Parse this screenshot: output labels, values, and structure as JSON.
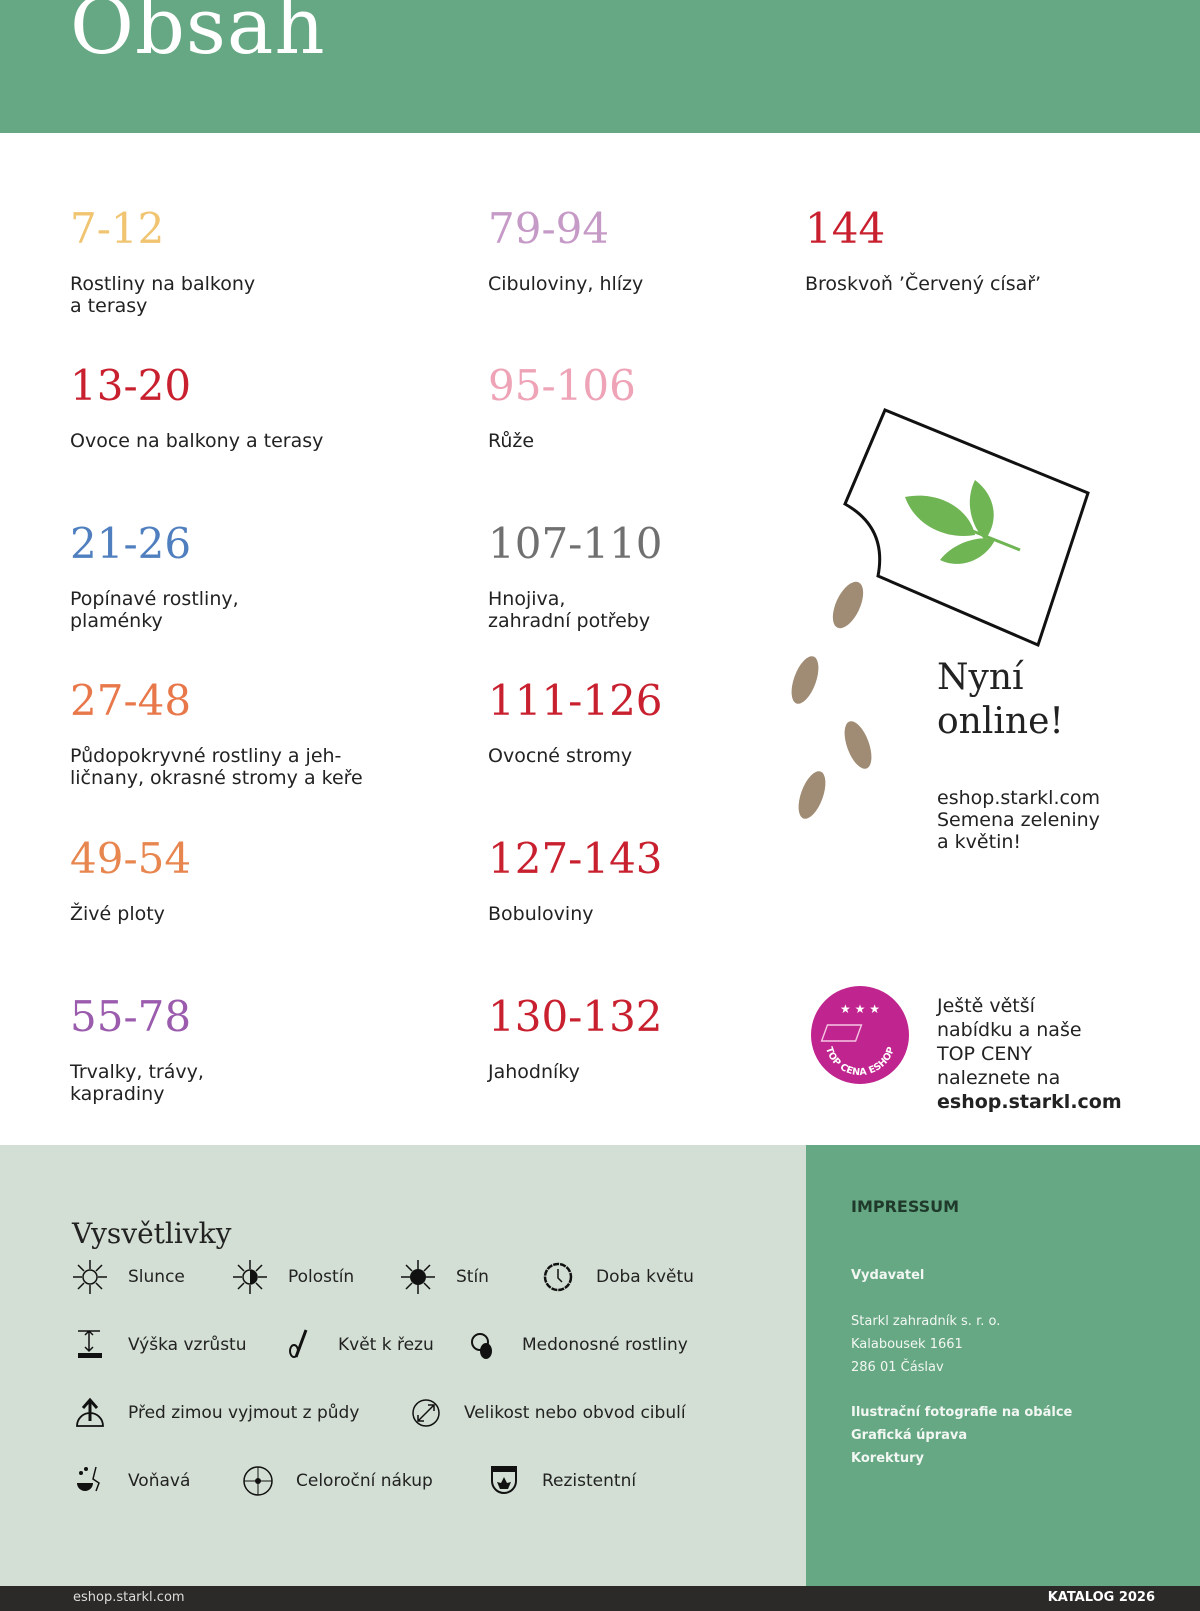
{
  "header": {
    "title": "Obsah",
    "bg": "#65a883"
  },
  "toc": [
    {
      "pages": "7-12",
      "label": "Rostliny na balkony\na terasy",
      "color": "#f0c471"
    },
    {
      "pages": "13-20",
      "label": "Ovoce na balkony a terasy",
      "color": "#c8202f"
    },
    {
      "pages": "21-26",
      "label": "Popínavé rostliny,\nplaménky",
      "color": "#4f7fbf"
    },
    {
      "pages": "27-48",
      "label": "Půdopokryvné rostliny a jeh-\nličnany, okrasné stromy a keře",
      "color": "#e8774a"
    },
    {
      "pages": "49-54",
      "label": "Živé ploty",
      "color": "#e8864f"
    },
    {
      "pages": "55-78",
      "label": "Trvalky, trávy,\nkapradiny",
      "color": "#9b5cae"
    },
    {
      "pages": "79-94",
      "label": "Cibuloviny, hlízy",
      "color": "#c69ac7"
    },
    {
      "pages": "95-106",
      "label": "Růže",
      "color": "#eea3b7"
    },
    {
      "pages": "107-110",
      "label": "Hnojiva,\nzahradní potřeby",
      "color": "#707070"
    },
    {
      "pages": "111-126",
      "label": "Ovocné stromy",
      "color": "#c8202f"
    },
    {
      "pages": "127-143",
      "label": "Bobuloviny",
      "color": "#c8202f"
    },
    {
      "pages": "130-132",
      "label": "Jahodníky",
      "color": "#c8202f"
    },
    {
      "pages": "144",
      "label": "Broskvoň ’Červený císař’",
      "color": "#c8202f"
    }
  ],
  "promo": {
    "heading_line1": "Nyní",
    "heading_line2": "online!",
    "text": "eshop.starkl.com\nSemena zeleniny\na květin!"
  },
  "badge": {
    "text": "TOP CENA ESHOP",
    "color": "#c0248f",
    "line1": "Ještě větší",
    "line2": "nabídku a naše",
    "line3": "TOP CENY",
    "line4": "naleznete na",
    "link": "eshop.starkl.com"
  },
  "legend": {
    "title": "Vysvětlivky",
    "items": [
      {
        "icon": "sun-icon",
        "label": "Slunce"
      },
      {
        "icon": "half-shade-icon",
        "label": "Polostín"
      },
      {
        "icon": "shade-icon",
        "label": "Stín"
      },
      {
        "icon": "clock-icon",
        "label": "Doba květu"
      },
      {
        "icon": "height-icon",
        "label": "Výška vzrůstu"
      },
      {
        "icon": "scissors-icon",
        "label": "Květ k řezu"
      },
      {
        "icon": "bee-icon",
        "label": "Medonosné rostliny"
      },
      {
        "icon": "lift-icon",
        "label": "Před zimou vyjmout z půdy"
      },
      {
        "icon": "diameter-icon",
        "label": "Velikost nebo obvod cibulí"
      },
      {
        "icon": "scent-icon",
        "label": "Voňavá"
      },
      {
        "icon": "year-round-icon",
        "label": "Celoroční nákup"
      },
      {
        "icon": "shield-icon",
        "label": "Rezistentní"
      }
    ]
  },
  "impressum": {
    "title": "IMPRESSUM",
    "publisher_label": "Vydavatel",
    "address": [
      "Starkl zahradník s. r. o.",
      "Kalabousek 1661",
      "286 01 Čáslav"
    ],
    "credits": [
      "Ilustrační fotografie na obálce",
      "Grafická úprava",
      "Korektury"
    ]
  },
  "footer": {
    "left": "eshop.starkl.com",
    "right": "KATALOG 2026"
  }
}
